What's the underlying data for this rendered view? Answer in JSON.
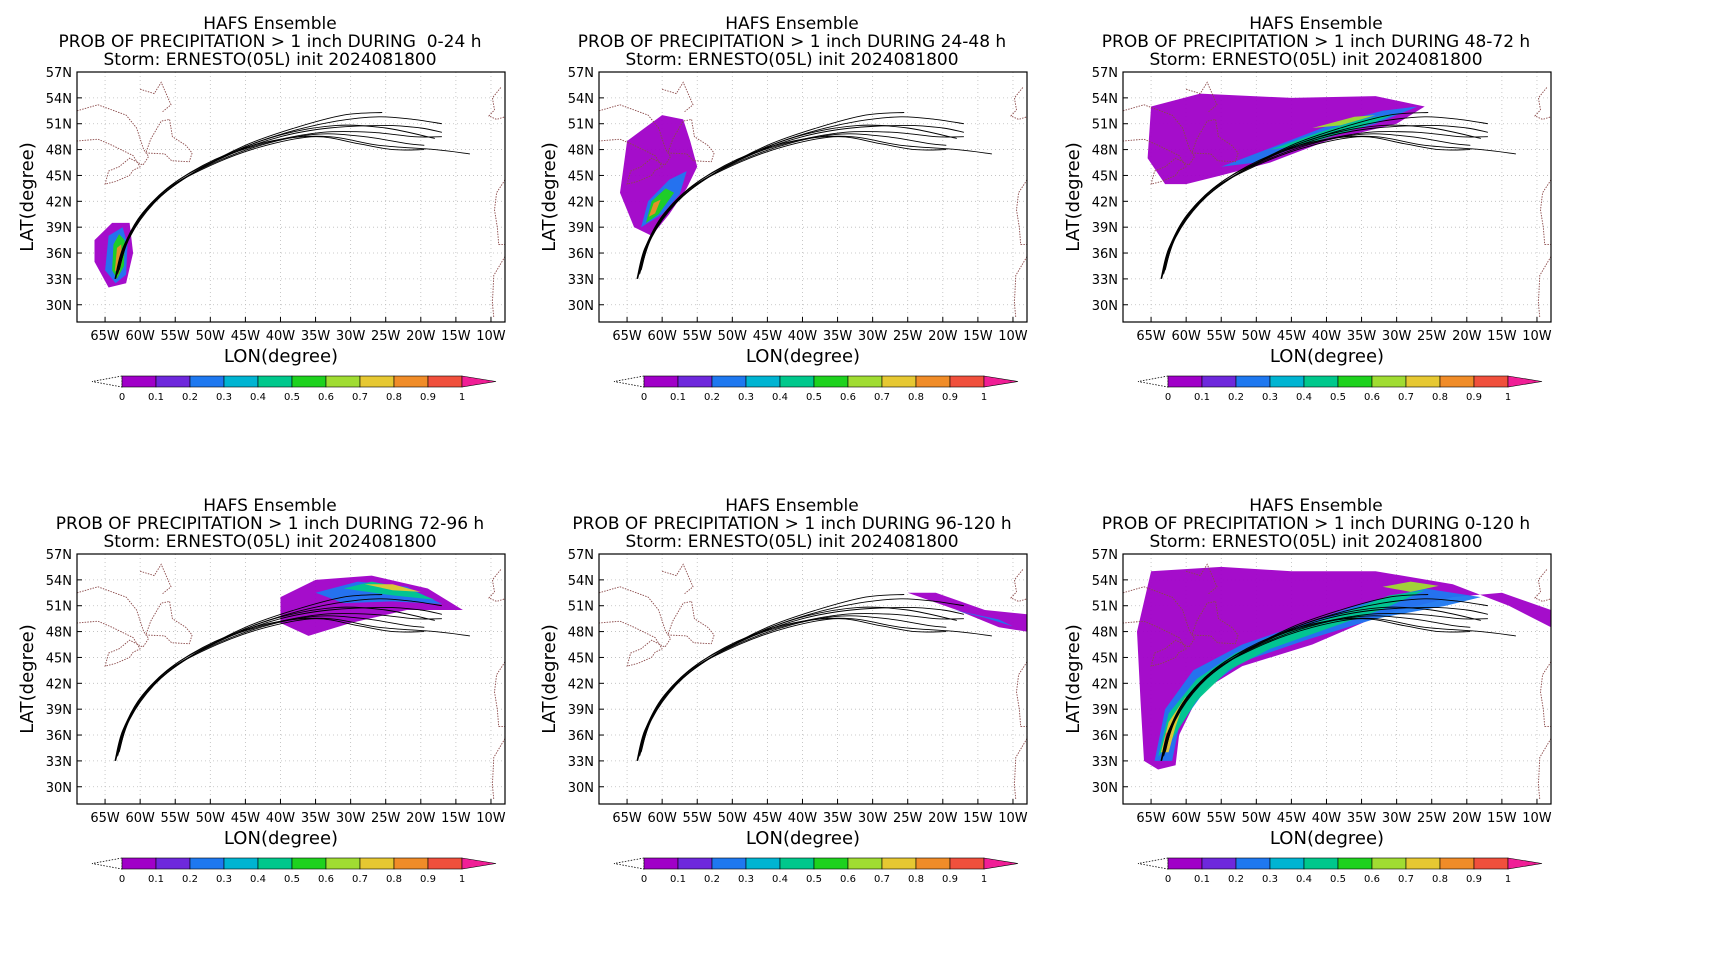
{
  "panels": [
    {
      "title": "HAFS Ensemble",
      "subtitle": "PROB OF PRECIPITATION > 1 inch DURING  0-24 h",
      "storm": "Storm: ERNESTO(05L) init 2024081800"
    },
    {
      "title": "HAFS Ensemble",
      "subtitle": "PROB OF PRECIPITATION > 1 inch DURING 24-48 h",
      "storm": "Storm: ERNESTO(05L) init 2024081800"
    },
    {
      "title": "HAFS Ensemble",
      "subtitle": "PROB OF PRECIPITATION > 1 inch DURING 48-72 h",
      "storm": "Storm: ERNESTO(05L) init 2024081800"
    },
    {
      "title": "HAFS Ensemble",
      "subtitle": "PROB OF PRECIPITATION > 1 inch DURING 72-96 h",
      "storm": "Storm: ERNESTO(05L) init 2024081800"
    },
    {
      "title": "HAFS Ensemble",
      "subtitle": "PROB OF PRECIPITATION > 1 inch DURING 96-120 h",
      "storm": "Storm: ERNESTO(05L) init 2024081800"
    },
    {
      "title": "HAFS Ensemble",
      "subtitle": "PROB OF PRECIPITATION > 1 inch DURING 0-120 h",
      "storm": "Storm: ERNESTO(05L) init 2024081800"
    }
  ],
  "chart_data": {
    "type": "heatmap",
    "xlabel": "LON(degree)",
    "ylabel": "LAT(degree)",
    "xlim": [
      -69,
      -8
    ],
    "ylim": [
      28,
      57
    ],
    "xticks": [
      -65,
      -60,
      -55,
      -50,
      -45,
      -40,
      -35,
      -30,
      -25,
      -20,
      -15,
      -10
    ],
    "xtick_labels": [
      "65W",
      "60W",
      "55W",
      "50W",
      "45W",
      "40W",
      "35W",
      "30W",
      "25W",
      "20W",
      "15W",
      "10W"
    ],
    "yticks": [
      30,
      33,
      36,
      39,
      42,
      45,
      48,
      51,
      54,
      57
    ],
    "ytick_labels": [
      "30N",
      "33N",
      "36N",
      "39N",
      "42N",
      "45N",
      "48N",
      "51N",
      "54N",
      "57N"
    ],
    "grid": true,
    "colorbar": {
      "levels": [
        "0",
        "0.1",
        "0.2",
        "0.3",
        "0.4",
        "0.5",
        "0.6",
        "0.7",
        "0.8",
        "0.9",
        "1"
      ],
      "colors": [
        "#a000c8",
        "#6e28dc",
        "#1e78f0",
        "#00b4d2",
        "#00c88c",
        "#1ed21e",
        "#a0dc32",
        "#e6c832",
        "#f08c28",
        "#f0503c",
        "#f01e96"
      ]
    },
    "track_color": "#000000",
    "coastline_color": "#8b4a4a",
    "tracks_note_values": [
      [
        [
          -63.5,
          33
        ],
        [
          -62,
          37
        ],
        [
          -59,
          41
        ],
        [
          -54,
          44.5
        ],
        [
          -47,
          47.5
        ],
        [
          -40,
          49.5
        ],
        [
          -33,
          50.5
        ],
        [
          -25,
          50.8
        ],
        [
          -20,
          50.5
        ],
        [
          -17,
          50
        ]
      ],
      [
        [
          -63.5,
          33.2
        ],
        [
          -62.2,
          37
        ],
        [
          -59.5,
          40.8
        ],
        [
          -55,
          44.2
        ],
        [
          -48,
          47.2
        ],
        [
          -41,
          49
        ],
        [
          -34,
          50
        ],
        [
          -27,
          50
        ],
        [
          -21,
          49.5
        ],
        [
          -17,
          49.5
        ]
      ],
      [
        [
          -63.3,
          33.5
        ],
        [
          -61.8,
          37.5
        ],
        [
          -58.5,
          41.5
        ],
        [
          -53,
          45
        ],
        [
          -46,
          48
        ],
        [
          -39,
          50
        ],
        [
          -32,
          51.3
        ],
        [
          -26,
          51.8
        ],
        [
          -21,
          51.5
        ],
        [
          -17,
          51
        ]
      ],
      [
        [
          -63.6,
          33
        ],
        [
          -62.5,
          36.5
        ],
        [
          -60,
          40
        ],
        [
          -56,
          43.5
        ],
        [
          -49,
          46.5
        ],
        [
          -42,
          48.5
        ],
        [
          -35,
          49.5
        ],
        [
          -29,
          48.7
        ],
        [
          -24,
          48
        ],
        [
          -19.5,
          48
        ]
      ],
      [
        [
          -63,
          34
        ],
        [
          -61.5,
          38
        ],
        [
          -58,
          42
        ],
        [
          -52,
          45.5
        ],
        [
          -45,
          48.5
        ],
        [
          -38,
          50.5
        ],
        [
          -31,
          52
        ],
        [
          -25.5,
          52.3
        ]
      ],
      [
        [
          -63.4,
          33.4
        ],
        [
          -62,
          37.2
        ],
        [
          -59,
          41.2
        ],
        [
          -54.5,
          44.5
        ],
        [
          -47.5,
          47.5
        ],
        [
          -40,
          49.2
        ],
        [
          -33,
          49.5
        ],
        [
          -26,
          48.5
        ],
        [
          -18,
          48
        ],
        [
          -13,
          47.5
        ]
      ],
      [
        [
          -63.2,
          33.6
        ],
        [
          -61.5,
          37.8
        ],
        [
          -58,
          41.8
        ],
        [
          -53.5,
          44.8
        ],
        [
          -46.5,
          47.8
        ],
        [
          -39.5,
          49.8
        ],
        [
          -32,
          50.8
        ],
        [
          -25,
          50.5
        ],
        [
          -18,
          49.3
        ]
      ],
      [
        [
          -63.5,
          33.1
        ],
        [
          -62.3,
          36.8
        ],
        [
          -59.8,
          40.5
        ],
        [
          -55.5,
          43.8
        ],
        [
          -48.5,
          46.8
        ],
        [
          -41.5,
          48.8
        ],
        [
          -34.5,
          49.8
        ],
        [
          -28,
          49.5
        ],
        [
          -22,
          48.7
        ],
        [
          -19.5,
          48.5
        ]
      ]
    ]
  }
}
